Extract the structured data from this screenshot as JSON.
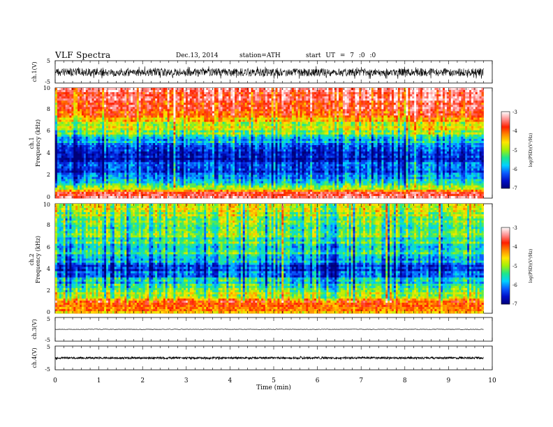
{
  "header": {
    "title": "VLF Spectra",
    "date": "Dec.13, 2014",
    "station": "station=ATH",
    "start": "start UT = 7 :0 :0"
  },
  "colors": {
    "colorbar": [
      "#000078",
      "#0010c8",
      "#0a5aff",
      "#00d2ff",
      "#1ee68c",
      "#a0f00a",
      "#ffe600",
      "#ff8c00",
      "#ff2000",
      "#ff9090",
      "#ffffff"
    ]
  },
  "chart_data": [
    {
      "type": "line",
      "panel": "ch1-waveform",
      "ylabel": "ch.1(V)",
      "ylim": [
        -5,
        5
      ],
      "yticks": [
        "5",
        "-5"
      ],
      "xlim": [
        0,
        10
      ],
      "series": [
        {
          "mean": -0.2,
          "noise_amplitude": 1.8
        }
      ]
    },
    {
      "type": "heatmap",
      "panel": "ch1-spectrogram",
      "ylabel": [
        "ch.1",
        "Frequency (kHz)"
      ],
      "ylim": [
        0,
        10
      ],
      "yticks": [
        "0",
        "2",
        "4",
        "6",
        "8",
        "10"
      ],
      "xlim": [
        0,
        9.8
      ],
      "colorbar": {
        "label": "log(PSD)(V²/Hz)",
        "range": [
          -7,
          -3
        ],
        "ticks": [
          "-3",
          "-4",
          "-5",
          "-6",
          "-7"
        ]
      },
      "frequency_profile_kHz": [
        [
          0.0,
          -3.3
        ],
        [
          0.5,
          -3.6
        ],
        [
          1.0,
          -5.2
        ],
        [
          1.5,
          -5.9
        ],
        [
          2.0,
          -6.1
        ],
        [
          2.5,
          -6.4
        ],
        [
          3.0,
          -6.5
        ],
        [
          4.0,
          -6.6
        ],
        [
          5.0,
          -6.0
        ],
        [
          5.5,
          -5.5
        ],
        [
          6.0,
          -5.1
        ],
        [
          6.5,
          -4.8
        ],
        [
          7.0,
          -4.5
        ],
        [
          8.0,
          -3.8
        ],
        [
          9.0,
          -3.5
        ],
        [
          10.0,
          -3.4
        ]
      ]
    },
    {
      "type": "heatmap",
      "panel": "ch2-spectrogram",
      "ylabel": [
        "ch.2",
        "Frequency (kHz)"
      ],
      "ylim": [
        0,
        10
      ],
      "yticks": [
        "0",
        "2",
        "4",
        "6",
        "8",
        "10"
      ],
      "xlim": [
        0,
        9.8
      ],
      "colorbar": {
        "label": "log(PSD)(V²/Hz)",
        "range": [
          -7,
          -3
        ],
        "ticks": [
          "-3",
          "-4",
          "-5",
          "-6",
          "-7"
        ]
      },
      "frequency_profile_kHz": [
        [
          0.0,
          -4.6
        ],
        [
          0.5,
          -4.0
        ],
        [
          1.0,
          -4.1
        ],
        [
          1.5,
          -4.6
        ],
        [
          2.0,
          -5.2
        ],
        [
          2.5,
          -5.5
        ],
        [
          3.0,
          -5.7
        ],
        [
          3.5,
          -6.1
        ],
        [
          4.0,
          -6.3
        ],
        [
          4.5,
          -6.2
        ],
        [
          5.0,
          -5.6
        ],
        [
          6.0,
          -5.5
        ],
        [
          7.0,
          -5.3
        ],
        [
          8.0,
          -5.1
        ],
        [
          9.0,
          -5.0
        ],
        [
          10.0,
          -5.0
        ]
      ]
    },
    {
      "type": "line",
      "panel": "ch3-waveform",
      "ylabel": "ch.3(V)",
      "ylim": [
        -5,
        5
      ],
      "yticks": [
        "5",
        "-5"
      ],
      "xlim": [
        0,
        10
      ],
      "series": [
        {
          "mean": 0.0,
          "noise_amplitude": 0.1
        }
      ]
    },
    {
      "type": "line",
      "panel": "ch4-waveform",
      "ylabel": "ch.4(V)",
      "ylim": [
        -5,
        5
      ],
      "yticks": [
        "5",
        "-5"
      ],
      "xlim": [
        0,
        10
      ],
      "xlabel": "Time (min)",
      "xticks": [
        "0",
        "1",
        "2",
        "3",
        "4",
        "5",
        "6",
        "7",
        "8",
        "9",
        "10"
      ],
      "series": [
        {
          "mean": 0.0,
          "noise_amplitude": 0.4
        }
      ]
    }
  ]
}
